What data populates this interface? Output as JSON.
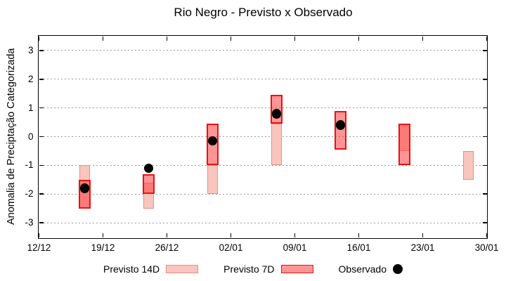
{
  "title": "Rio Negro - Previsto x Observado",
  "chart_data": {
    "type": "bar",
    "subtype": "forecast-range-boxes-with-observed-points",
    "title": "Rio Negro - Previsto x Observado",
    "xlabel": "",
    "ylabel": "Anomalia de Preciptação Categorizada",
    "ylim": [
      -3.5,
      3.5
    ],
    "yticks": [
      3,
      2,
      1,
      0,
      -1,
      -2,
      -3
    ],
    "grid": "horizontal dotted gray",
    "legend_position": "bottom center",
    "xlim_days": [
      0,
      49
    ],
    "xticks": [
      {
        "day": 0,
        "label": "12/12"
      },
      {
        "day": 7,
        "label": "19/12"
      },
      {
        "day": 14,
        "label": "26/12"
      },
      {
        "day": 21,
        "label": "02/01"
      },
      {
        "day": 28,
        "label": "09/01"
      },
      {
        "day": 35,
        "label": "16/01"
      },
      {
        "day": 42,
        "label": "23/01"
      },
      {
        "day": 49,
        "label": "30/01"
      }
    ],
    "series": [
      {
        "name": "Previsto 14D",
        "style": "box",
        "fill": "#f8c6be",
        "stroke": "#ee8d7d",
        "points": [
          {
            "day": 5,
            "date": "17/12",
            "low": -2.5,
            "high": -1.0
          },
          {
            "day": 12,
            "date": "24/12",
            "low": -2.5,
            "high": -1.6
          },
          {
            "day": 19,
            "date": "31/12",
            "low": -2.0,
            "high": -1.0
          },
          {
            "day": 26,
            "date": "07/01",
            "low": -1.0,
            "high": 0.45
          },
          {
            "day": 40,
            "date": "21/01",
            "low": -0.5,
            "high": 0.45
          },
          {
            "day": 47,
            "date": "28/01",
            "low": -1.5,
            "high": -0.5
          }
        ]
      },
      {
        "name": "Previsto 7D",
        "style": "box",
        "fill": "rgba(255,60,60,0.55)",
        "stroke": "#e41414",
        "points": [
          {
            "day": 5,
            "date": "17/12",
            "low": -2.5,
            "high": -1.5
          },
          {
            "day": 12,
            "date": "24/12",
            "low": -2.0,
            "high": -1.3
          },
          {
            "day": 19,
            "date": "31/12",
            "low": -1.0,
            "high": 0.45
          },
          {
            "day": 26,
            "date": "07/01",
            "low": 0.45,
            "high": 1.45
          },
          {
            "day": 33,
            "date": "14/01",
            "low": -0.45,
            "high": 0.9
          },
          {
            "day": 40,
            "date": "21/01",
            "low": -1.0,
            "high": 0.45
          }
        ]
      },
      {
        "name": "Observado",
        "style": "point",
        "fill": "#000000",
        "points": [
          {
            "day": 5,
            "date": "17/12",
            "value": -1.8
          },
          {
            "day": 12,
            "date": "24/12",
            "value": -1.1
          },
          {
            "day": 19,
            "date": "31/12",
            "value": -0.15
          },
          {
            "day": 26,
            "date": "07/01",
            "value": 0.8
          },
          {
            "day": 33,
            "date": "14/01",
            "value": 0.4
          }
        ]
      }
    ]
  }
}
